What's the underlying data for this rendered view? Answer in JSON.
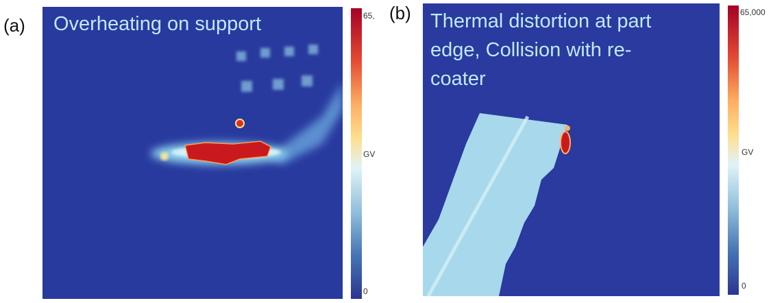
{
  "panels": [
    {
      "label": "(a)",
      "caption_lines": [
        "Overheating on support"
      ],
      "colorbar": {
        "top": "65,",
        "middle": "GV",
        "bottom": "0"
      }
    },
    {
      "label": "(b)",
      "caption_lines": [
        "Thermal distortion at part",
        "edge, Collision with re-",
        "coater"
      ],
      "colorbar": {
        "top": "65,000",
        "middle": "GV",
        "bottom": "0"
      }
    }
  ]
}
